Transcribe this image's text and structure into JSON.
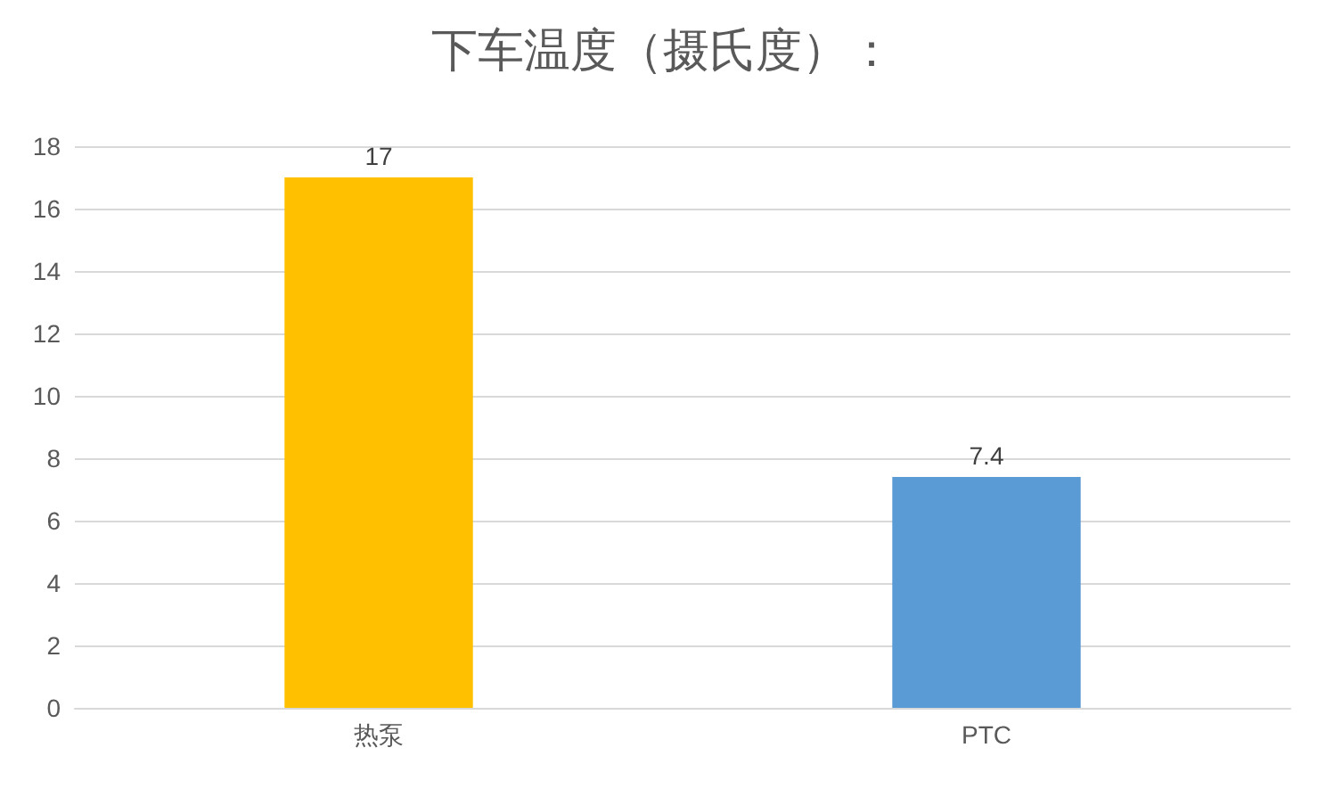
{
  "chart_data": {
    "type": "bar",
    "title": "下车温度（摄氏度）：",
    "categories": [
      "热泵",
      "PTC"
    ],
    "values": [
      17,
      7.4
    ],
    "colors": [
      "#ffc000",
      "#5b9bd5"
    ],
    "ylim": [
      0,
      18
    ],
    "yticks": [
      0,
      2,
      4,
      6,
      8,
      10,
      12,
      14,
      16,
      18
    ],
    "grid": "y",
    "data_labels": true
  }
}
